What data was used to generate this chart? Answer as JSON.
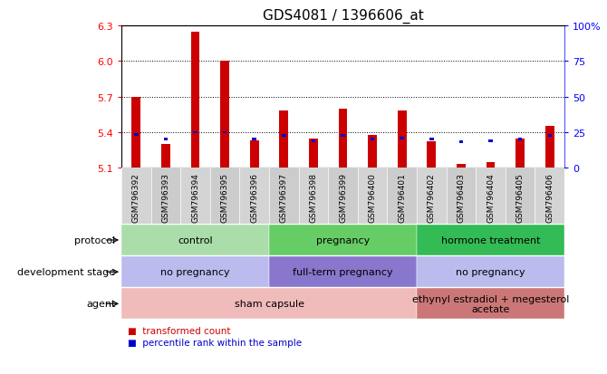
{
  "title": "GDS4081 / 1396606_at",
  "samples": [
    "GSM796392",
    "GSM796393",
    "GSM796394",
    "GSM796395",
    "GSM796396",
    "GSM796397",
    "GSM796398",
    "GSM796399",
    "GSM796400",
    "GSM796401",
    "GSM796402",
    "GSM796403",
    "GSM796404",
    "GSM796405",
    "GSM796406"
  ],
  "transformed_count": [
    5.7,
    5.3,
    6.25,
    6.0,
    5.33,
    5.58,
    5.35,
    5.6,
    5.38,
    5.58,
    5.32,
    5.13,
    5.15,
    5.35,
    5.45
  ],
  "percentile_rank": [
    5.38,
    5.34,
    5.4,
    5.4,
    5.34,
    5.37,
    5.33,
    5.37,
    5.34,
    5.35,
    5.34,
    5.32,
    5.33,
    5.34,
    5.37
  ],
  "y_min": 5.1,
  "y_max": 6.3,
  "y_ticks_left": [
    5.1,
    5.4,
    5.7,
    6.0,
    6.3
  ],
  "y_ticks_right_labels": [
    "0",
    "25",
    "50",
    "75",
    "100%"
  ],
  "bar_color": "#cc0000",
  "blue_color": "#0000cc",
  "grid_yticks": [
    5.4,
    5.7,
    6.0
  ],
  "xticklabel_bg": "#d0d0d0",
  "protocol_groups": [
    {
      "label": "control",
      "start": 0,
      "end": 5,
      "color": "#aaddaa"
    },
    {
      "label": "pregnancy",
      "start": 5,
      "end": 10,
      "color": "#66cc66"
    },
    {
      "label": "hormone treatment",
      "start": 10,
      "end": 15,
      "color": "#33bb55"
    }
  ],
  "dev_stage_groups": [
    {
      "label": "no pregnancy",
      "start": 0,
      "end": 5,
      "color": "#bbbbee"
    },
    {
      "label": "full-term pregnancy",
      "start": 5,
      "end": 10,
      "color": "#8877cc"
    },
    {
      "label": "no pregnancy",
      "start": 10,
      "end": 15,
      "color": "#bbbbee"
    }
  ],
  "agent_groups": [
    {
      "label": "sham capsule",
      "start": 0,
      "end": 10,
      "color": "#f0bbbb"
    },
    {
      "label": "ethynyl estradiol + megesterol\nacetate",
      "start": 10,
      "end": 15,
      "color": "#cc7777"
    }
  ],
  "legend_red": "transformed count",
  "legend_blue": "percentile rank within the sample"
}
